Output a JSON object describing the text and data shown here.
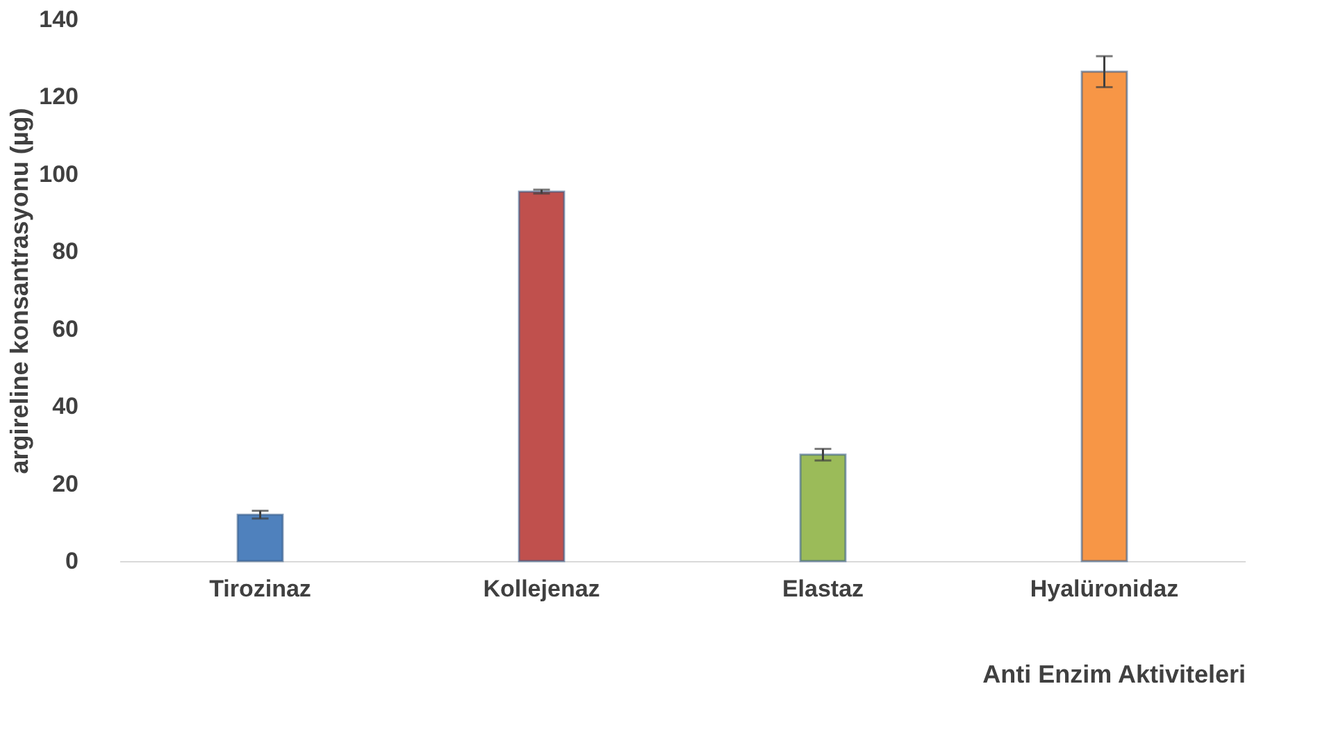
{
  "chart_data": {
    "type": "bar",
    "xlabel": "Anti Enzim Aktiviteleri",
    "ylabel": "argireline konsantrasyonu (µg)",
    "categories": [
      "Tirozinaz",
      "Kollejenaz",
      "Elastaz",
      "Hyalüronidaz"
    ],
    "values": [
      12,
      95.5,
      27.5,
      126.5
    ],
    "errors": [
      1,
      0.5,
      1.5,
      4
    ],
    "colors": [
      "#4f81bd",
      "#c0504d",
      "#9bbb59",
      "#f79646"
    ],
    "ylim": [
      0,
      140
    ],
    "yticks": [
      0,
      20,
      40,
      60,
      80,
      100,
      120,
      140
    ],
    "grid": false
  }
}
